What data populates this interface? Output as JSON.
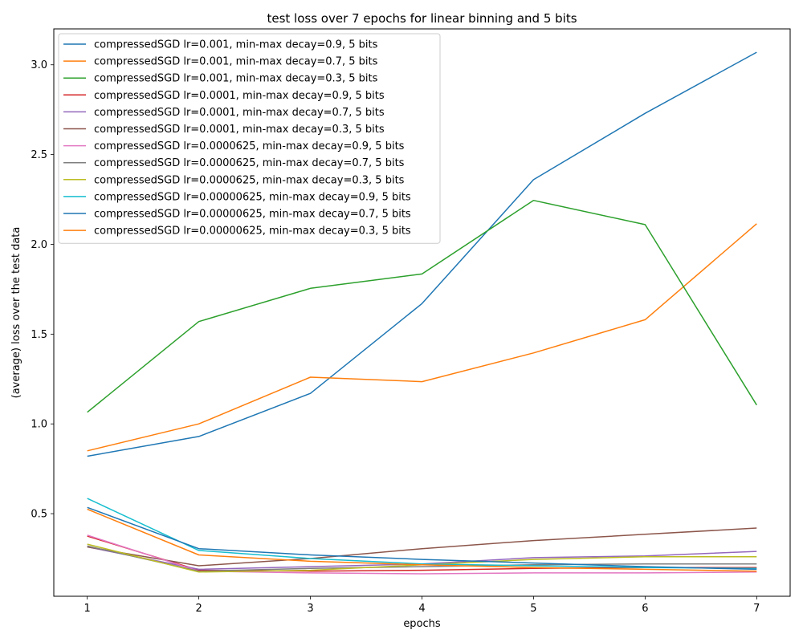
{
  "chart_data": {
    "type": "line",
    "title": "test loss over 7 epochs for linear binning and 5 bits",
    "xlabel": "epochs",
    "ylabel": "(average) loss over the test data",
    "x": [
      1,
      2,
      3,
      4,
      5,
      6,
      7
    ],
    "xlim": [
      0.7,
      7.3
    ],
    "ylim": [
      0.04,
      3.2
    ],
    "xticks": [
      "1",
      "2",
      "3",
      "4",
      "5",
      "6",
      "7"
    ],
    "yticks": [
      0.5,
      1.0,
      1.5,
      2.0,
      2.5,
      3.0
    ],
    "ytick_labels": [
      "0.5",
      "1.0",
      "1.5",
      "2.0",
      "2.5",
      "3.0"
    ],
    "grid": false,
    "legend_position": "top-left",
    "series": [
      {
        "name": "compressedSGD lr=0.001, min-max decay=0.9, 5 bits",
        "color": "#1f77b4",
        "values": [
          0.82,
          0.93,
          1.17,
          1.67,
          2.36,
          2.73,
          3.07
        ]
      },
      {
        "name": "compressedSGD lr=0.001, min-max decay=0.7, 5 bits",
        "color": "#ff7f0e",
        "values": [
          0.85,
          1.0,
          1.26,
          1.235,
          1.395,
          1.58,
          2.115
        ]
      },
      {
        "name": "compressedSGD lr=0.001, min-max decay=0.3, 5 bits",
        "color": "#2ca02c",
        "values": [
          1.065,
          1.57,
          1.755,
          1.835,
          2.245,
          2.11,
          1.105
        ]
      },
      {
        "name": "compressedSGD lr=0.0001, min-max decay=0.9, 5 bits",
        "color": "#d62728",
        "values": [
          0.375,
          0.185,
          0.18,
          0.185,
          0.195,
          0.2,
          0.2
        ]
      },
      {
        "name": "compressedSGD lr=0.0001, min-max decay=0.7, 5 bits",
        "color": "#9467bd",
        "values": [
          0.315,
          0.19,
          0.205,
          0.22,
          0.255,
          0.265,
          0.29
        ]
      },
      {
        "name": "compressedSGD lr=0.0001, min-max decay=0.3, 5 bits",
        "color": "#8c564b",
        "values": [
          0.315,
          0.21,
          0.25,
          0.305,
          0.35,
          0.385,
          0.42
        ]
      },
      {
        "name": "compressedSGD lr=0.0000625, min-max decay=0.9, 5 bits",
        "color": "#e377c2",
        "values": [
          0.38,
          0.18,
          0.17,
          0.165,
          0.17,
          0.17,
          0.175
        ]
      },
      {
        "name": "compressedSGD lr=0.0000625, min-max decay=0.7, 5 bits",
        "color": "#7f7f7f",
        "values": [
          0.32,
          0.18,
          0.195,
          0.205,
          0.215,
          0.22,
          0.22
        ]
      },
      {
        "name": "compressedSGD lr=0.0000625, min-max decay=0.3, 5 bits",
        "color": "#bcbd22",
        "values": [
          0.33,
          0.175,
          0.185,
          0.215,
          0.245,
          0.26,
          0.26
        ]
      },
      {
        "name": "compressedSGD lr=0.00000625, min-max decay=0.9, 5 bits",
        "color": "#17becf",
        "values": [
          0.585,
          0.295,
          0.25,
          0.22,
          0.21,
          0.2,
          0.195
        ]
      },
      {
        "name": "compressedSGD lr=0.00000625, min-max decay=0.7, 5 bits",
        "color": "#1f77b4",
        "values": [
          0.535,
          0.305,
          0.27,
          0.245,
          0.225,
          0.205,
          0.19
        ]
      },
      {
        "name": "compressedSGD lr=0.00000625, min-max decay=0.3, 5 bits",
        "color": "#ff7f0e",
        "values": [
          0.525,
          0.27,
          0.235,
          0.215,
          0.2,
          0.19,
          0.18
        ]
      }
    ]
  }
}
